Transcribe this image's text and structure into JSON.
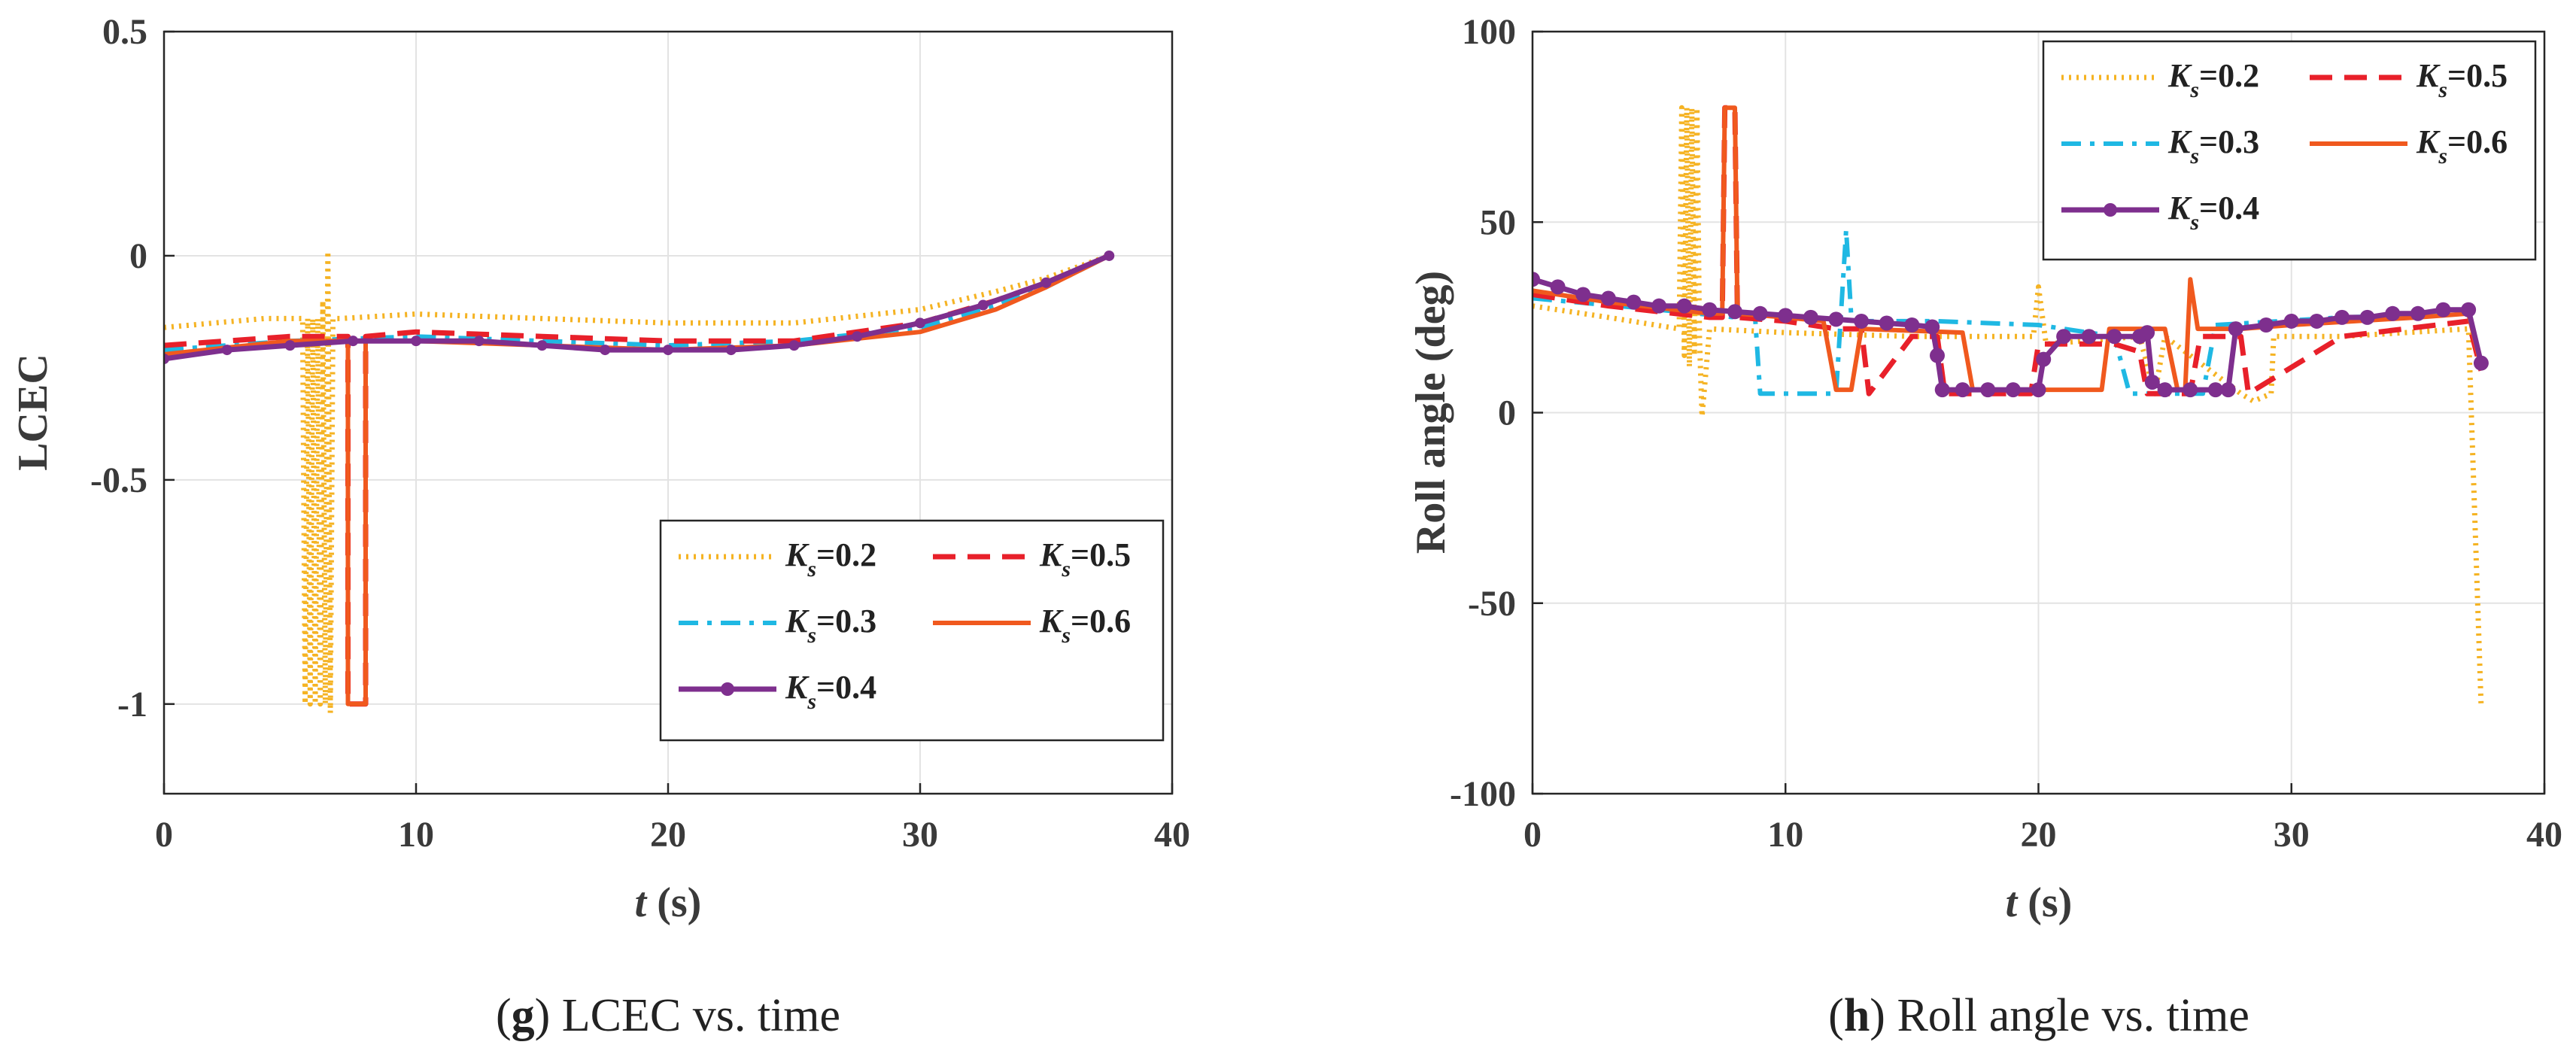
{
  "colors": {
    "Ks=0.2": "#f5b323",
    "Ks=0.3": "#1fb8e3",
    "Ks=0.4": "#7e2f8e",
    "Ks=0.5": "#e8202a",
    "Ks=0.6": "#f0591e"
  },
  "chart_data": [
    {
      "id": "g",
      "type": "line",
      "caption_letter": "g",
      "caption_text": "LCEC vs. time",
      "xlabel": "t",
      "xlabel_unit": "(s)",
      "ylabel": "LCEC",
      "xlim": [
        0,
        40
      ],
      "ylim": [
        -1.2,
        0.5
      ],
      "xticks": [
        0,
        10,
        20,
        30,
        40
      ],
      "xtick_labels": [
        "0",
        "10",
        "20",
        "30",
        "40"
      ],
      "yticks": [
        -1,
        -0.5,
        0,
        0.5
      ],
      "ytick_labels": [
        "-1",
        "-0.5",
        "0",
        "0.5"
      ],
      "grid": true,
      "legend_position": "lower-right",
      "legend": [
        {
          "key": "Ks=0.2",
          "symbol": "K",
          "sub": "s",
          "value": "=0.2",
          "style": "dotted"
        },
        {
          "key": "Ks=0.5",
          "symbol": "K",
          "sub": "s",
          "value": "=0.5",
          "style": "dashed"
        },
        {
          "key": "Ks=0.3",
          "symbol": "K",
          "sub": "s",
          "value": "=0.3",
          "style": "dashdot"
        },
        {
          "key": "Ks=0.6",
          "symbol": "K",
          "sub": "s",
          "value": "=0.6",
          "style": "solid"
        },
        {
          "key": "Ks=0.4",
          "symbol": "K",
          "sub": "s",
          "value": "=0.4",
          "style": "marker"
        }
      ],
      "series": [
        {
          "name": "Ks=0.2",
          "style": "dotted",
          "x": [
            0,
            2,
            4,
            5.5,
            5.6,
            5.7,
            5.8,
            5.9,
            6.0,
            6.1,
            6.2,
            6.3,
            6.4,
            6.5,
            6.6,
            6.7,
            7,
            10,
            15,
            20,
            25,
            30,
            33,
            35,
            37.5
          ],
          "y": [
            -0.16,
            -0.15,
            -0.14,
            -0.14,
            -1,
            -0.14,
            -1,
            -0.14,
            -1,
            -0.14,
            -1,
            -0.1,
            -1,
            0.01,
            -1.02,
            -0.14,
            -0.14,
            -0.13,
            -0.14,
            -0.15,
            -0.15,
            -0.12,
            -0.08,
            -0.05,
            0
          ]
        },
        {
          "name": "Ks=0.3",
          "style": "dashdot",
          "x": [
            0,
            5,
            10,
            15,
            20,
            25,
            30,
            33,
            35,
            37.5
          ],
          "y": [
            -0.21,
            -0.19,
            -0.18,
            -0.19,
            -0.2,
            -0.19,
            -0.16,
            -0.11,
            -0.07,
            0
          ]
        },
        {
          "name": "Ks=0.5",
          "style": "dashed",
          "x": [
            0,
            5,
            7.3,
            7.3,
            8.0,
            8.0,
            10,
            15,
            20,
            25,
            30,
            33,
            35,
            37.5
          ],
          "y": [
            -0.2,
            -0.18,
            -0.18,
            -1,
            -1,
            -0.18,
            -0.17,
            -0.18,
            -0.19,
            -0.19,
            -0.15,
            -0.1,
            -0.06,
            0
          ]
        },
        {
          "name": "Ks=0.6",
          "style": "solid",
          "x": [
            0,
            5,
            7.3,
            7.3,
            8.0,
            8.0,
            10,
            15,
            20,
            25,
            30,
            33,
            35,
            37.5
          ],
          "y": [
            -0.22,
            -0.19,
            -0.19,
            -1,
            -1,
            -0.19,
            -0.19,
            -0.2,
            -0.21,
            -0.2,
            -0.17,
            -0.12,
            -0.07,
            0
          ]
        },
        {
          "name": "Ks=0.4",
          "style": "marker",
          "x": [
            0,
            2.5,
            5,
            7.5,
            10,
            12.5,
            15,
            17.5,
            20,
            22.5,
            25,
            27.5,
            30,
            32.5,
            35,
            37.5
          ],
          "y": [
            -0.23,
            -0.21,
            -0.2,
            -0.19,
            -0.19,
            -0.19,
            -0.2,
            -0.21,
            -0.21,
            -0.21,
            -0.2,
            -0.18,
            -0.15,
            -0.11,
            -0.06,
            0
          ]
        }
      ]
    },
    {
      "id": "h",
      "type": "line",
      "caption_letter": "h",
      "caption_text": "Roll angle vs. time",
      "xlabel": "t",
      "xlabel_unit": "(s)",
      "ylabel": "Roll angle (deg)",
      "xlim": [
        0,
        40
      ],
      "ylim": [
        -100,
        100
      ],
      "xticks": [
        0,
        10,
        20,
        30,
        40
      ],
      "xtick_labels": [
        "0",
        "10",
        "20",
        "30",
        "40"
      ],
      "yticks": [
        -100,
        -50,
        0,
        50,
        100
      ],
      "ytick_labels": [
        "-100",
        "-50",
        "0",
        "50",
        "100"
      ],
      "grid": true,
      "legend_position": "top-right",
      "legend": [
        {
          "key": "Ks=0.2",
          "symbol": "K",
          "sub": "s",
          "value": "=0.2",
          "style": "dotted"
        },
        {
          "key": "Ks=0.5",
          "symbol": "K",
          "sub": "s",
          "value": "=0.5",
          "style": "dashed"
        },
        {
          "key": "Ks=0.3",
          "symbol": "K",
          "sub": "s",
          "value": "=0.3",
          "style": "dashdot"
        },
        {
          "key": "Ks=0.6",
          "symbol": "K",
          "sub": "s",
          "value": "=0.6",
          "style": "solid"
        },
        {
          "key": "Ks=0.4",
          "symbol": "K",
          "sub": "s",
          "value": "=0.4",
          "style": "marker"
        }
      ],
      "series": [
        {
          "name": "Ks=0.2",
          "style": "dotted",
          "x": [
            0,
            3,
            5.8,
            5.9,
            6.0,
            6.1,
            6.2,
            6.3,
            6.4,
            6.5,
            6.6,
            6.7,
            7,
            10,
            15,
            19.8,
            20,
            20.3,
            24,
            24.6,
            25,
            28,
            28.5,
            29.2,
            29.3,
            32,
            37,
            37.5
          ],
          "y": [
            28,
            25,
            22,
            80,
            15,
            80,
            12,
            80,
            15,
            80,
            20,
            -1,
            22,
            21,
            20,
            20,
            33,
            18,
            20,
            5,
            20,
            5,
            3,
            5,
            20,
            20,
            22,
            -77
          ]
        },
        {
          "name": "Ks=0.3",
          "style": "dashdot",
          "x": [
            0,
            5,
            8,
            8.8,
            9,
            12,
            12.4,
            12.6,
            12.8,
            13,
            16,
            20,
            23,
            23.6,
            24,
            26.5,
            27,
            32,
            37,
            37.5
          ],
          "y": [
            30,
            27,
            25,
            25,
            5,
            5,
            48,
            25,
            24,
            24,
            24,
            23,
            20,
            5,
            5,
            5,
            23,
            25,
            26,
            13
          ]
        },
        {
          "name": "Ks=0.5",
          "style": "dashed",
          "x": [
            0,
            3,
            7,
            7.5,
            7.6,
            8.0,
            8.1,
            10,
            12,
            13,
            13.3,
            15,
            16,
            16.3,
            19.7,
            20,
            23,
            24,
            24.3,
            26,
            26.4,
            28,
            28.3,
            32,
            37,
            37.5
          ],
          "y": [
            31,
            28,
            25,
            25,
            80,
            80,
            25,
            24,
            22,
            22,
            5,
            20,
            20,
            5,
            5,
            18,
            18,
            16,
            5,
            5,
            20,
            20,
            5,
            20,
            24,
            11
          ]
        },
        {
          "name": "Ks=0.6",
          "style": "solid",
          "x": [
            0,
            3,
            7,
            7.5,
            7.6,
            8.0,
            8.1,
            10,
            11.5,
            12,
            12.6,
            13,
            17,
            17.4,
            20,
            22.5,
            22.8,
            25,
            25.5,
            25.8,
            26,
            26.3,
            28,
            30,
            35,
            37,
            37.5
          ],
          "y": [
            32,
            29,
            26,
            26,
            80,
            80,
            26,
            25,
            24,
            6,
            6,
            22,
            21,
            6,
            6,
            6,
            22,
            22,
            6,
            6,
            35,
            22,
            22,
            23,
            25,
            26,
            12
          ]
        },
        {
          "name": "Ks=0.4",
          "style": "marker",
          "x": [
            0,
            1,
            2,
            3,
            4,
            5,
            6,
            7,
            8,
            9,
            10,
            11,
            12,
            13,
            14,
            15,
            15.8,
            16,
            16.2,
            17,
            18,
            19,
            20,
            20.2,
            21,
            22,
            23,
            24,
            24.3,
            24.5,
            25,
            26,
            27,
            27.5,
            27.8,
            29,
            30,
            31,
            32,
            33,
            34,
            35,
            36,
            37,
            37.5
          ],
          "y": [
            35,
            33,
            31,
            30,
            29,
            28,
            28,
            27,
            26.5,
            26,
            25.5,
            25,
            24.5,
            24,
            23.5,
            23,
            22.5,
            15,
            6,
            6,
            6,
            6,
            6,
            14,
            20,
            20,
            20,
            20,
            21,
            8,
            6,
            6,
            6,
            6,
            22,
            23,
            24,
            24,
            25,
            25,
            26,
            26,
            27,
            27,
            13
          ]
        }
      ]
    }
  ]
}
